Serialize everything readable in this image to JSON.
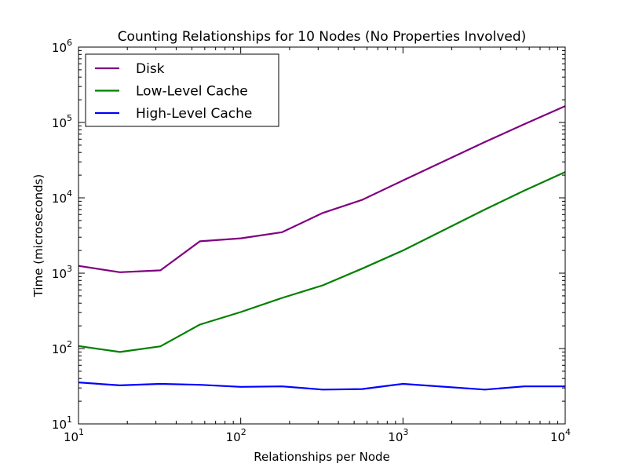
{
  "chart_data": {
    "type": "line",
    "title": "Counting Relationships for 10 Nodes (No Properties Involved)",
    "xlabel": "Relationships per Node",
    "ylabel": "Time (microseconds)",
    "x_scale": "log",
    "y_scale": "log",
    "xlim": [
      10,
      10000
    ],
    "ylim": [
      10,
      1000000
    ],
    "x_ticks": [
      {
        "value": 10,
        "base": "10",
        "exp": "1"
      },
      {
        "value": 100,
        "base": "10",
        "exp": "2"
      },
      {
        "value": 1000,
        "base": "10",
        "exp": "3"
      },
      {
        "value": 10000,
        "base": "10",
        "exp": "4"
      }
    ],
    "y_ticks": [
      {
        "value": 10,
        "base": "10",
        "exp": "1"
      },
      {
        "value": 100,
        "base": "10",
        "exp": "2"
      },
      {
        "value": 1000,
        "base": "10",
        "exp": "3"
      },
      {
        "value": 10000,
        "base": "10",
        "exp": "4"
      },
      {
        "value": 100000,
        "base": "10",
        "exp": "5"
      },
      {
        "value": 1000000,
        "base": "10",
        "exp": "6"
      }
    ],
    "grid": false,
    "legend_position": "top-left",
    "x": [
      10,
      18,
      32,
      56,
      100,
      180,
      320,
      560,
      1000,
      3200,
      5600,
      10000
    ],
    "series": [
      {
        "name": "Disk",
        "color": "#800080",
        "values": [
          1250,
          1030,
          1090,
          2650,
          2900,
          3500,
          6300,
          9400,
          17000,
          55000,
          95000,
          165000
        ]
      },
      {
        "name": "Low-Level Cache",
        "color": "#008000",
        "values": [
          108,
          90,
          107,
          208,
          305,
          470,
          690,
          1150,
          2000,
          7000,
          12500,
          22000
        ]
      },
      {
        "name": "High-Level Cache",
        "color": "#0000ff",
        "values": [
          35.5,
          32.5,
          34,
          33,
          31,
          31.5,
          28.5,
          29,
          34,
          28.5,
          31.5,
          31.5
        ]
      }
    ]
  }
}
